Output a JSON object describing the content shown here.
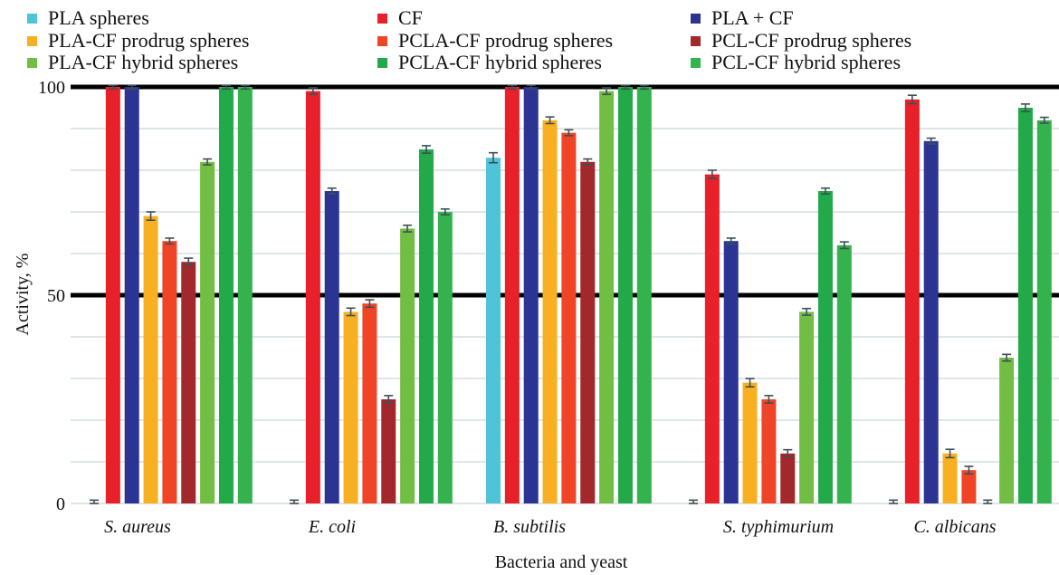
{
  "chart_data": {
    "type": "bar",
    "xlabel": "Bacteria and yeast",
    "ylabel": "Activity, %",
    "ylim": [
      0,
      100
    ],
    "yticks": [
      0,
      50,
      100
    ],
    "categories": [
      "S. aureus",
      "E. coli",
      "B. subtilis",
      "S. typhimurium",
      "C. albicans"
    ],
    "grid": true,
    "legend_position": "top",
    "series": [
      {
        "name": "PLA spheres",
        "color": "#4fc3d8",
        "values": [
          0,
          0,
          83,
          0,
          0
        ],
        "errors": [
          0.8,
          0.8,
          1.2,
          0.8,
          0.8
        ]
      },
      {
        "name": "CF",
        "color": "#e8202a",
        "values": [
          100,
          99,
          100,
          79,
          97
        ],
        "errors": [
          0.5,
          0.8,
          0.5,
          1.0,
          1.0
        ]
      },
      {
        "name": "PLA + CF",
        "color": "#2b3492",
        "values": [
          100,
          75,
          100,
          63,
          87
        ],
        "errors": [
          0.5,
          0.7,
          0.5,
          0.7,
          0.7
        ]
      },
      {
        "name": "PLA-CF prodrug spheres",
        "color": "#f8b022",
        "values": [
          69,
          46,
          92,
          29,
          12
        ],
        "errors": [
          1.0,
          0.9,
          0.8,
          1.0,
          1.0
        ]
      },
      {
        "name": "PCLA-CF prodrug spheres",
        "color": "#ef4426",
        "values": [
          63,
          48,
          89,
          25,
          8
        ],
        "errors": [
          0.7,
          0.9,
          0.7,
          0.9,
          0.9
        ]
      },
      {
        "name": "PCL-CF prodrug spheres",
        "color": "#a3282c",
        "values": [
          58,
          25,
          82,
          12,
          0
        ],
        "errors": [
          0.9,
          0.9,
          0.7,
          0.9,
          0.8
        ]
      },
      {
        "name": "PLA-CF hybrid spheres",
        "color": "#72be44",
        "values": [
          82,
          66,
          99,
          46,
          35
        ],
        "errors": [
          0.7,
          0.8,
          0.8,
          0.8,
          0.8
        ]
      },
      {
        "name": "PCLA-CF hybrid spheres",
        "color": "#22a94a",
        "values": [
          100,
          85,
          100,
          75,
          95
        ],
        "errors": [
          0.5,
          0.9,
          0.5,
          0.7,
          0.9
        ]
      },
      {
        "name": "PCL-CF hybrid spheres",
        "color": "#34b24d",
        "values": [
          100,
          70,
          100,
          62,
          92
        ],
        "errors": [
          0.5,
          0.7,
          0.5,
          0.8,
          0.7
        ]
      }
    ]
  }
}
